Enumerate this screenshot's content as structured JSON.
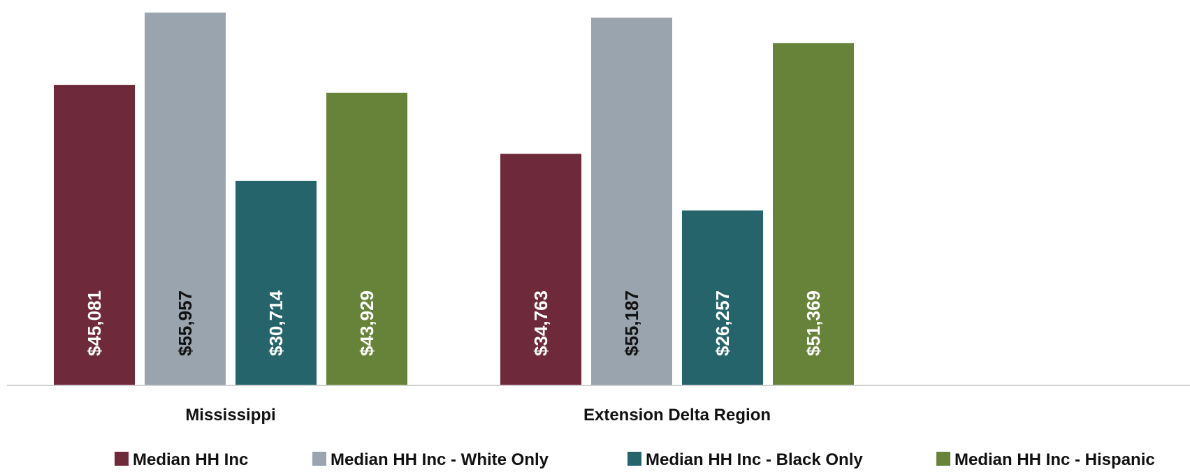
{
  "chart_data": {
    "type": "bar",
    "categories": [
      "Mississippi",
      "Extension Delta Region"
    ],
    "series": [
      {
        "name": "Median HH Inc",
        "color": "#6e2a3b",
        "label_color": "#ffffff",
        "values": [
          45081,
          34763
        ],
        "labels": [
          "$45,081",
          "$34,763"
        ]
      },
      {
        "name": "Median HH Inc - White Only",
        "color": "#99a4af",
        "label_color": "#111111",
        "values": [
          55957,
          55187
        ],
        "labels": [
          "$55,957",
          "$55,187"
        ]
      },
      {
        "name": "Median HH Inc - Black Only",
        "color": "#26646c",
        "label_color": "#ffffff",
        "values": [
          30714,
          26257
        ],
        "labels": [
          "$30,714",
          "$26,257"
        ]
      },
      {
        "name": "Median HH Inc - Hispanic",
        "color": "#67833a",
        "label_color": "#ffffff",
        "values": [
          43929,
          51369
        ],
        "labels": [
          "$43,929",
          "$51,369"
        ]
      }
    ],
    "title": "",
    "xlabel": "",
    "ylabel": "",
    "ylim": [
      0,
      56800
    ],
    "grid": false,
    "legend_position": "bottom"
  }
}
